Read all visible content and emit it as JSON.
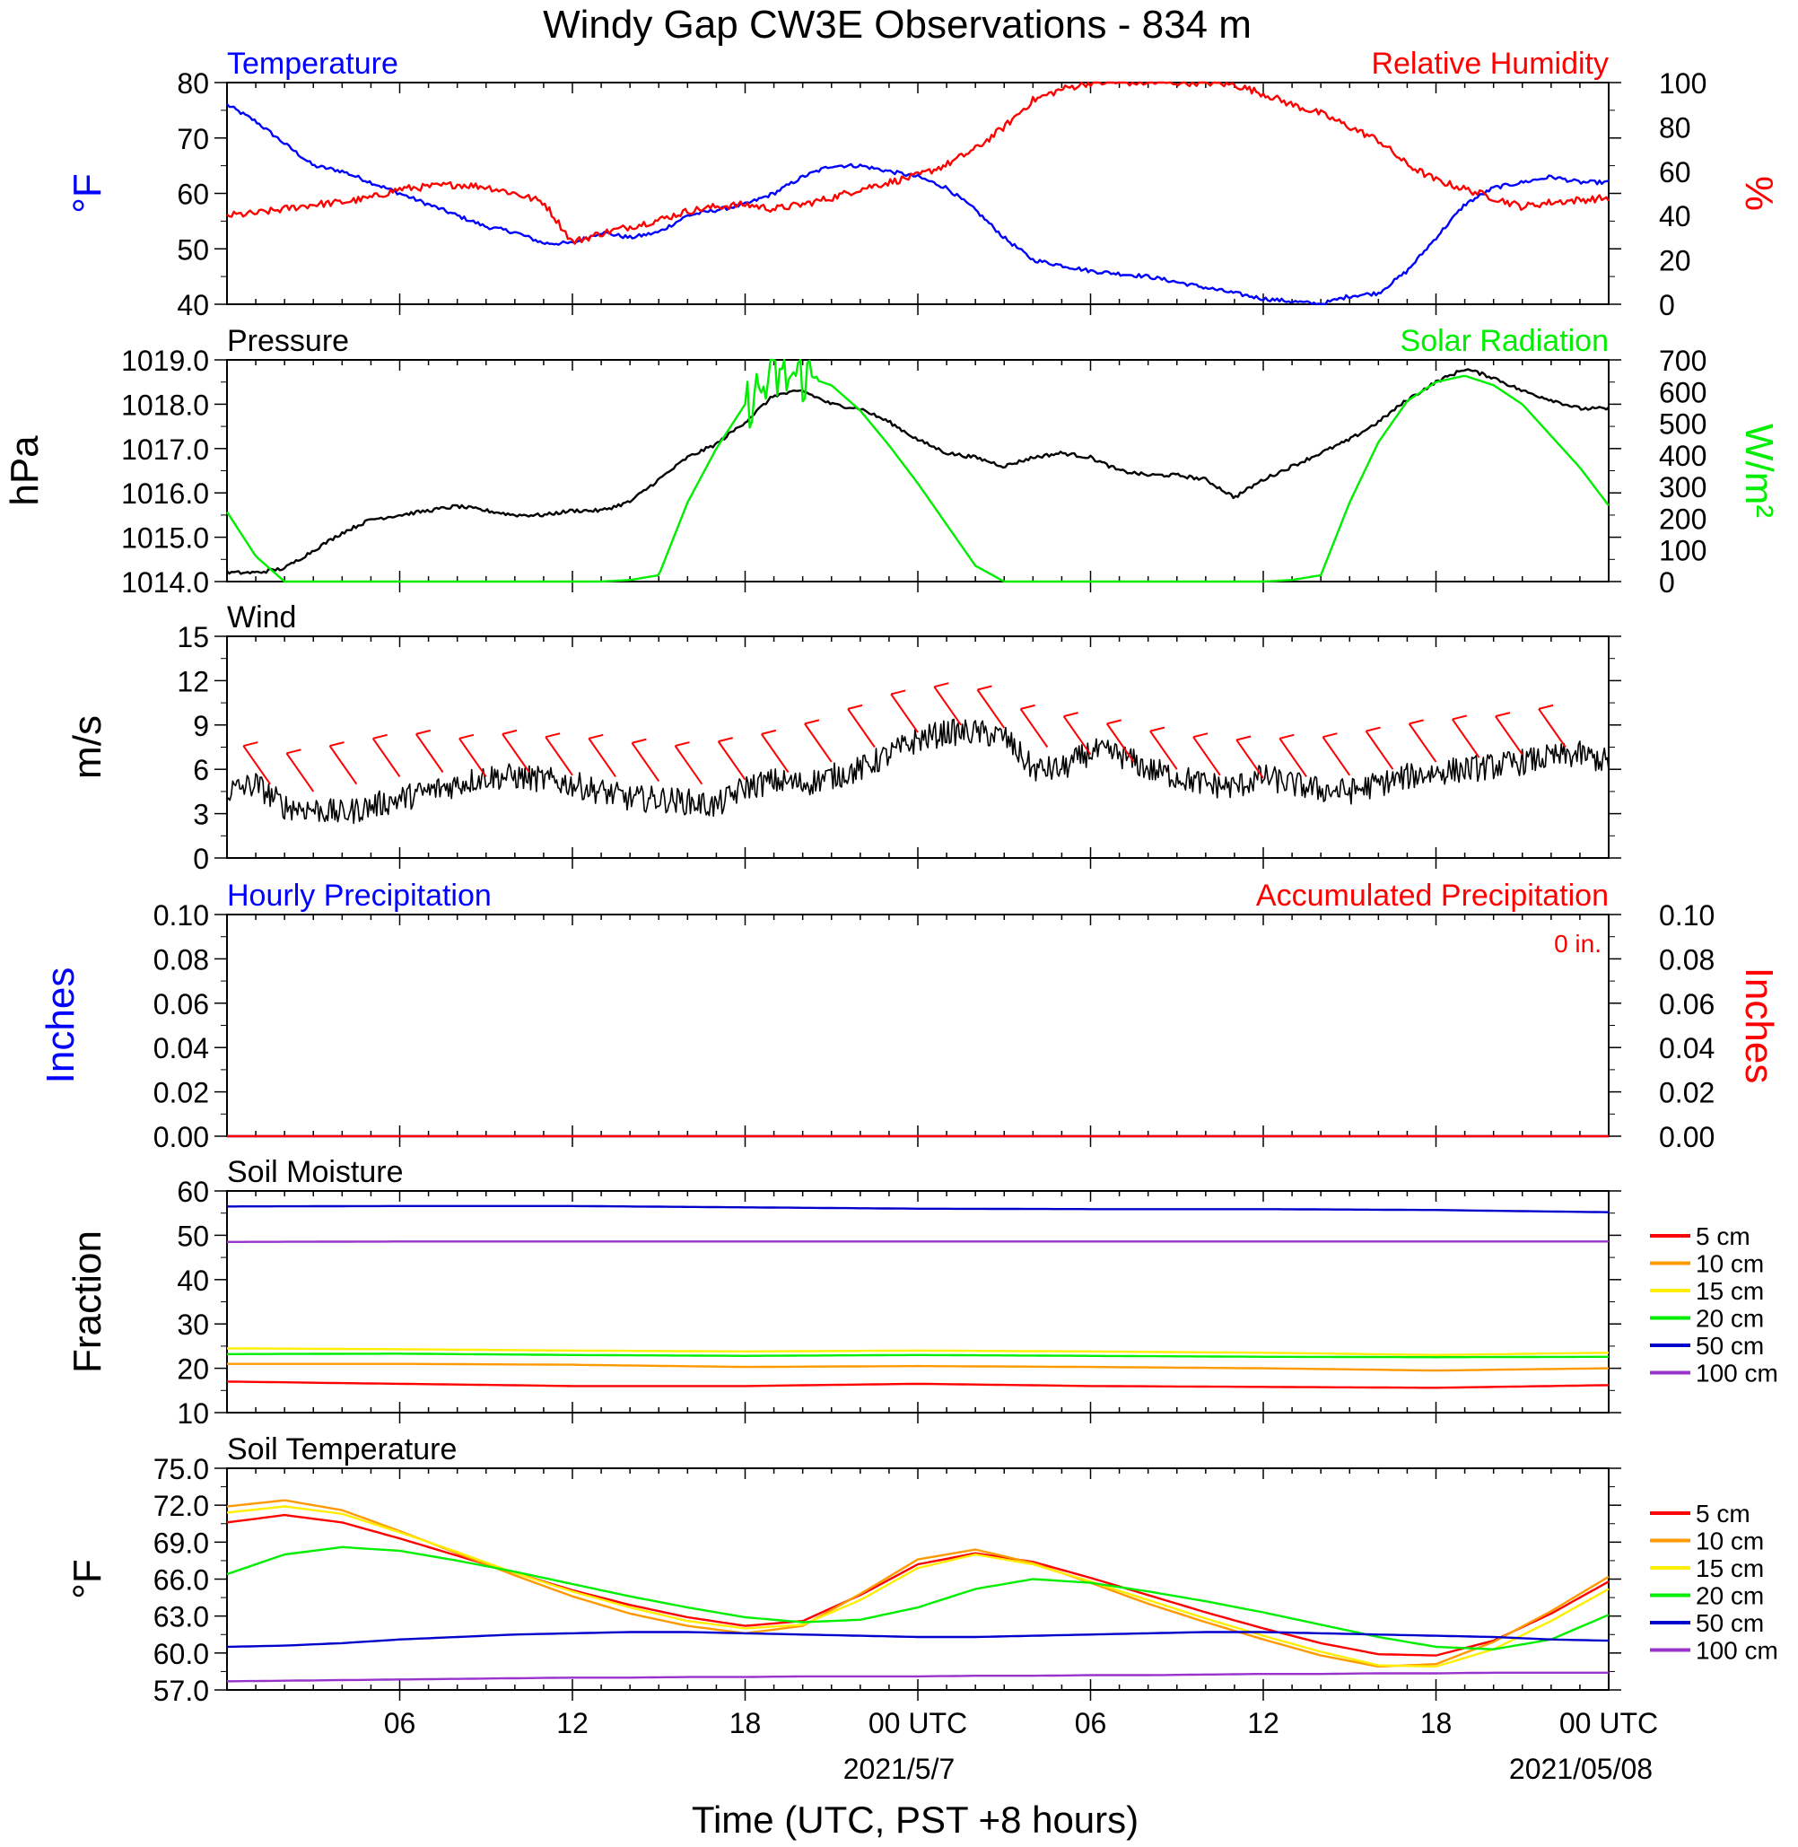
{
  "figure": {
    "title": "Windy Gap CW3E Observations - 834 m",
    "xlabel": "Time (UTC, PST +8 hours)",
    "x_ticks": [
      "06",
      "12",
      "18",
      "00 UTC",
      "06",
      "12",
      "18",
      "00 UTC"
    ],
    "date_labels": [
      "2021/5/7",
      "2021/05/08"
    ]
  },
  "colors": {
    "blue": "#0000ff",
    "red": "#ff0000",
    "green": "#00ee00",
    "black": "#000000",
    "orange": "#ff9900",
    "yellow": "#ffee00",
    "navy": "#0000cc",
    "purple": "#9933cc"
  },
  "chart_data": [
    {
      "id": "temp_rh",
      "type": "line",
      "left_label": "Temperature",
      "right_label": "Relative Humidity",
      "y_left": {
        "unit": "°F",
        "lim": [
          40,
          80
        ],
        "ticks": [
          "40",
          "50",
          "60",
          "70",
          "80"
        ]
      },
      "y_right": {
        "unit": "%",
        "lim": [
          0,
          100
        ],
        "ticks": [
          "0",
          "20",
          "40",
          "60",
          "80",
          "100"
        ]
      },
      "x_hours": [
        0,
        1,
        2,
        3,
        4,
        5,
        6,
        7,
        8,
        9,
        10,
        11,
        12,
        13,
        14,
        15,
        16,
        17,
        18,
        19,
        20,
        21,
        22,
        23,
        24,
        25,
        26,
        27,
        28,
        29,
        30,
        31,
        32,
        33,
        34,
        35,
        36,
        37,
        38,
        39,
        40,
        41,
        42,
        43,
        44,
        45,
        46,
        47,
        48
      ],
      "series": [
        {
          "name": "Temperature",
          "axis": "left",
          "values": [
            76,
            73,
            69,
            65,
            64,
            62,
            60,
            58,
            56,
            54,
            53,
            51,
            51,
            53,
            52,
            53,
            56,
            57,
            58,
            60,
            63,
            65,
            65,
            64,
            63,
            61,
            57,
            52,
            48,
            47,
            46,
            45.5,
            45,
            44,
            43,
            42,
            41,
            40.5,
            40,
            41.5,
            42,
            46,
            52,
            58,
            61,
            62,
            63,
            62,
            62
          ]
        },
        {
          "name": "Relative Humidity",
          "axis": "right",
          "values": [
            40,
            41,
            43,
            45,
            46,
            48,
            52,
            53,
            54,
            53,
            50,
            46,
            28,
            32,
            35,
            38,
            42,
            44,
            45,
            43,
            45,
            48,
            52,
            55,
            58,
            63,
            70,
            80,
            92,
            97,
            100,
            100,
            100,
            100,
            100,
            99,
            95,
            90,
            86,
            80,
            74,
            63,
            56,
            52,
            48,
            44,
            46,
            47,
            48
          ]
        }
      ]
    },
    {
      "id": "pressure_solar",
      "type": "line",
      "left_label": "Pressure",
      "right_label": "Solar Radiation",
      "y_left": {
        "unit": "hPa",
        "lim": [
          1014,
          1019
        ],
        "ticks": [
          "1014.0",
          "1015.0",
          "1016.0",
          "1017.0",
          "1018.0",
          "1019.0"
        ]
      },
      "y_right": {
        "unit": "W/m²",
        "lim": [
          0,
          700
        ],
        "ticks": [
          "0",
          "100",
          "200",
          "300",
          "400",
          "500",
          "600",
          "700"
        ]
      },
      "x_hours": [
        0,
        1,
        2,
        3,
        4,
        5,
        6,
        7,
        8,
        9,
        10,
        11,
        12,
        13,
        14,
        15,
        16,
        17,
        18,
        19,
        20,
        21,
        22,
        23,
        24,
        25,
        26,
        27,
        28,
        29,
        30,
        31,
        32,
        33,
        34,
        35,
        36,
        37,
        38,
        39,
        40,
        41,
        42,
        43,
        44,
        45,
        46,
        47,
        48
      ],
      "series": [
        {
          "name": "Pressure",
          "axis": "left",
          "values": [
            1014.2,
            1014.2,
            1014.3,
            1014.7,
            1015.1,
            1015.4,
            1015.5,
            1015.6,
            1015.7,
            1015.6,
            1015.5,
            1015.5,
            1015.6,
            1015.6,
            1015.8,
            1016.3,
            1016.8,
            1017.1,
            1017.6,
            1018.2,
            1018.3,
            1018.0,
            1017.9,
            1017.6,
            1017.2,
            1016.9,
            1016.8,
            1016.6,
            1016.8,
            1016.9,
            1016.8,
            1016.5,
            1016.4,
            1016.4,
            1016.3,
            1015.9,
            1016.3,
            1016.6,
            1016.9,
            1017.2,
            1017.6,
            1018.1,
            1018.5,
            1018.8,
            1018.6,
            1018.3,
            1018.1,
            1017.9,
            1017.9
          ]
        },
        {
          "name": "Solar Radiation",
          "axis": "right",
          "values": [
            220,
            80,
            0,
            0,
            0,
            0,
            0,
            0,
            0,
            0,
            0,
            0,
            0,
            0,
            5,
            20,
            250,
            420,
            560,
            640,
            650,
            620,
            540,
            430,
            310,
            180,
            50,
            0,
            0,
            0,
            0,
            0,
            0,
            0,
            0,
            0,
            0,
            5,
            20,
            250,
            440,
            570,
            630,
            650,
            620,
            560,
            460,
            360,
            240
          ]
        }
      ]
    },
    {
      "id": "wind",
      "type": "line",
      "left_label": "Wind",
      "y_left": {
        "unit": "m/s",
        "lim": [
          0,
          15
        ],
        "ticks": [
          "0",
          "3",
          "6",
          "9",
          "12",
          "15"
        ]
      },
      "x_hours": [
        0,
        1,
        2,
        3,
        4,
        5,
        6,
        7,
        8,
        9,
        10,
        11,
        12,
        13,
        14,
        15,
        16,
        17,
        18,
        19,
        20,
        21,
        22,
        23,
        24,
        25,
        26,
        27,
        28,
        29,
        30,
        31,
        32,
        33,
        34,
        35,
        36,
        37,
        38,
        39,
        40,
        41,
        42,
        43,
        44,
        45,
        46,
        47,
        48
      ],
      "series": [
        {
          "name": "Wind speed",
          "values": [
            4.5,
            5.0,
            3.5,
            3.3,
            3.0,
            3.5,
            4.0,
            4.5,
            5.0,
            5.5,
            5.5,
            5.3,
            5.0,
            4.5,
            4.0,
            4.0,
            3.8,
            3.5,
            4.8,
            5.2,
            5.0,
            5.5,
            6.0,
            7.0,
            8.0,
            8.5,
            8.5,
            8.2,
            6.0,
            6.0,
            7.2,
            7.0,
            6.0,
            5.5,
            5.0,
            4.8,
            5.5,
            5.0,
            4.6,
            4.5,
            5.0,
            5.5,
            5.8,
            6.0,
            6.2,
            6.5,
            6.8,
            7.0,
            6.5
          ]
        }
      ],
      "barbs": [
        {
          "hour": 1.5,
          "speed": 5.0
        },
        {
          "hour": 3.0,
          "speed": 4.5
        },
        {
          "hour": 4.5,
          "speed": 5.0
        },
        {
          "hour": 6.0,
          "speed": 5.5
        },
        {
          "hour": 7.5,
          "speed": 5.8
        },
        {
          "hour": 9.0,
          "speed": 5.5
        },
        {
          "hour": 10.5,
          "speed": 5.8
        },
        {
          "hour": 12.0,
          "speed": 5.6
        },
        {
          "hour": 13.5,
          "speed": 5.5
        },
        {
          "hour": 15.0,
          "speed": 5.2
        },
        {
          "hour": 16.5,
          "speed": 5.0
        },
        {
          "hour": 18.0,
          "speed": 5.3
        },
        {
          "hour": 19.5,
          "speed": 5.8
        },
        {
          "hour": 21.0,
          "speed": 6.5
        },
        {
          "hour": 22.5,
          "speed": 7.5
        },
        {
          "hour": 24.0,
          "speed": 8.5
        },
        {
          "hour": 25.5,
          "speed": 9.0
        },
        {
          "hour": 27.0,
          "speed": 8.8
        },
        {
          "hour": 28.5,
          "speed": 7.5
        },
        {
          "hour": 30.0,
          "speed": 7.0
        },
        {
          "hour": 31.5,
          "speed": 6.5
        },
        {
          "hour": 33.0,
          "speed": 6.0
        },
        {
          "hour": 34.5,
          "speed": 5.6
        },
        {
          "hour": 36.0,
          "speed": 5.4
        },
        {
          "hour": 37.5,
          "speed": 5.5
        },
        {
          "hour": 39.0,
          "speed": 5.6
        },
        {
          "hour": 40.5,
          "speed": 6.0
        },
        {
          "hour": 42.0,
          "speed": 6.5
        },
        {
          "hour": 43.5,
          "speed": 6.8
        },
        {
          "hour": 45.0,
          "speed": 7.0
        },
        {
          "hour": 46.5,
          "speed": 7.5
        }
      ]
    },
    {
      "id": "precip",
      "type": "line",
      "left_label": "Hourly Precipitation",
      "right_label": "Accumulated Precipitation",
      "accum_total": "0 in.",
      "y_left": {
        "unit": "Inches",
        "lim": [
          0,
          0.1
        ],
        "ticks": [
          "0.00",
          "0.02",
          "0.04",
          "0.06",
          "0.08",
          "0.10"
        ]
      },
      "y_right": {
        "unit": "Inches",
        "lim": [
          0,
          0.1
        ],
        "ticks": [
          "0.00",
          "0.02",
          "0.04",
          "0.06",
          "0.08",
          "0.10"
        ]
      },
      "x_hours": [
        0,
        48
      ],
      "series": [
        {
          "name": "Hourly Precipitation",
          "axis": "left",
          "values": [
            0,
            0
          ]
        },
        {
          "name": "Accumulated Precipitation",
          "axis": "right",
          "values": [
            0,
            0
          ]
        }
      ]
    },
    {
      "id": "soil_moisture",
      "type": "line",
      "left_label": "Soil Moisture",
      "y_left": {
        "unit": "Fraction",
        "lim": [
          10,
          60
        ],
        "ticks": [
          "10",
          "20",
          "30",
          "40",
          "50",
          "60"
        ]
      },
      "x_hours": [
        0,
        6,
        12,
        18,
        24,
        30,
        36,
        42,
        48
      ],
      "series": [
        {
          "name": "5 cm",
          "values": [
            17.0,
            16.5,
            16.0,
            16.0,
            16.5,
            16.0,
            15.8,
            15.6,
            16.2
          ]
        },
        {
          "name": "10 cm",
          "values": [
            21.0,
            21.0,
            20.8,
            20.3,
            20.5,
            20.3,
            20.0,
            19.5,
            20.0
          ]
        },
        {
          "name": "15 cm",
          "values": [
            24.5,
            24.3,
            24.0,
            23.8,
            24.0,
            23.8,
            23.5,
            23.0,
            23.5
          ]
        },
        {
          "name": "20 cm",
          "values": [
            23.2,
            23.3,
            23.0,
            22.8,
            23.0,
            22.8,
            22.6,
            22.5,
            22.6
          ]
        },
        {
          "name": "50 cm",
          "values": [
            56.5,
            56.6,
            56.6,
            56.3,
            56.0,
            55.9,
            55.9,
            55.7,
            55.2
          ]
        },
        {
          "name": "100 cm",
          "values": [
            48.5,
            48.6,
            48.6,
            48.6,
            48.6,
            48.6,
            48.6,
            48.6,
            48.6
          ]
        }
      ]
    },
    {
      "id": "soil_temp",
      "type": "line",
      "left_label": "Soil Temperature",
      "y_left": {
        "unit": "°F",
        "lim": [
          57,
          75
        ],
        "ticks": [
          "57.0",
          "60.0",
          "63.0",
          "66.0",
          "69.0",
          "72.0",
          "75.0"
        ]
      },
      "x_hours": [
        0,
        2,
        4,
        6,
        8,
        10,
        12,
        14,
        16,
        18,
        20,
        22,
        24,
        26,
        28,
        30,
        32,
        34,
        36,
        38,
        40,
        42,
        44,
        46,
        48
      ],
      "series": [
        {
          "name": "5 cm",
          "values": [
            70.6,
            71.2,
            70.6,
            69.3,
            67.9,
            66.5,
            65.1,
            63.9,
            62.9,
            62.2,
            62.6,
            64.7,
            67.2,
            68.1,
            67.4,
            66.1,
            64.7,
            63.3,
            62.0,
            60.8,
            59.9,
            59.8,
            61.0,
            63.2,
            65.8
          ]
        },
        {
          "name": "10 cm",
          "values": [
            71.9,
            72.4,
            71.6,
            69.9,
            68.1,
            66.3,
            64.6,
            63.2,
            62.2,
            61.6,
            62.2,
            64.8,
            67.6,
            68.4,
            67.3,
            65.7,
            64.0,
            62.5,
            61.1,
            59.8,
            58.9,
            59.1,
            60.9,
            63.4,
            66.2
          ]
        },
        {
          "name": "15 cm",
          "values": [
            71.4,
            71.9,
            71.3,
            69.8,
            68.2,
            66.5,
            65.0,
            63.7,
            62.6,
            62.0,
            62.3,
            64.3,
            66.9,
            68.0,
            67.2,
            65.8,
            64.3,
            62.8,
            61.4,
            60.1,
            59.0,
            58.9,
            60.3,
            62.6,
            65.2
          ]
        },
        {
          "name": "20 cm",
          "values": [
            66.4,
            68.0,
            68.6,
            68.3,
            67.5,
            66.6,
            65.6,
            64.6,
            63.7,
            62.9,
            62.5,
            62.7,
            63.7,
            65.2,
            66.0,
            65.7,
            65.0,
            64.2,
            63.3,
            62.3,
            61.3,
            60.5,
            60.3,
            61.1,
            63.1
          ]
        },
        {
          "name": "50 cm",
          "values": [
            60.5,
            60.6,
            60.8,
            61.1,
            61.3,
            61.5,
            61.6,
            61.7,
            61.7,
            61.6,
            61.5,
            61.4,
            61.3,
            61.3,
            61.4,
            61.5,
            61.6,
            61.7,
            61.7,
            61.6,
            61.5,
            61.4,
            61.3,
            61.1,
            61.0
          ]
        },
        {
          "name": "100 cm",
          "values": [
            57.7,
            57.75,
            57.8,
            57.85,
            57.9,
            57.95,
            58.0,
            58.0,
            58.05,
            58.05,
            58.1,
            58.1,
            58.1,
            58.15,
            58.15,
            58.2,
            58.2,
            58.25,
            58.3,
            58.3,
            58.35,
            58.35,
            58.4,
            58.4,
            58.4
          ]
        }
      ]
    }
  ],
  "legend": {
    "entries": [
      "5 cm",
      "10 cm",
      "15 cm",
      "20 cm",
      "50 cm",
      "100 cm"
    ],
    "colors": [
      "#ff0000",
      "#ff9900",
      "#ffee00",
      "#00ee00",
      "#0000cc",
      "#9933cc"
    ]
  }
}
